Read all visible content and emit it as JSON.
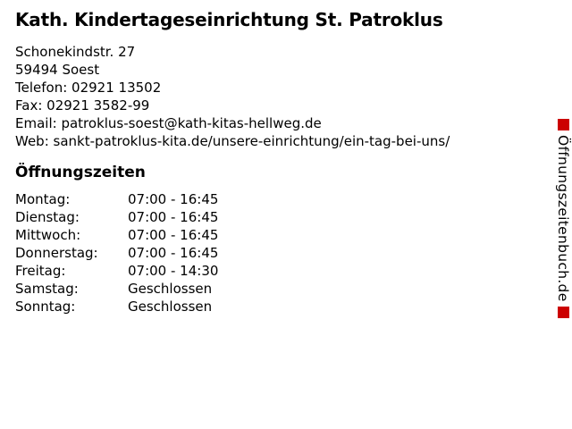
{
  "business": {
    "name": "Kath. Kindertageseinrichtung St. Patroklus"
  },
  "contact": {
    "lines": [
      {
        "label": "",
        "value": "Schonekindstr. 27"
      },
      {
        "label": "",
        "value": "59494 Soest"
      },
      {
        "label": "Telefon:",
        "value": "02921 13502"
      },
      {
        "label": "Fax:",
        "value": "02921 3582-99"
      },
      {
        "label": "Email:",
        "value": "patroklus-soest@kath-kitas-hellweg.de"
      },
      {
        "label": "Web:",
        "value": "sankt-patroklus-kita.de/unsere-einrichtung/ein-tag-bei-uns/"
      }
    ]
  },
  "hours": {
    "heading": "Öffnungszeiten",
    "rows": [
      {
        "day": "Montag:",
        "time": "07:00 - 16:45"
      },
      {
        "day": "Dienstag:",
        "time": "07:00 - 16:45"
      },
      {
        "day": "Mittwoch:",
        "time": "07:00 - 16:45"
      },
      {
        "day": "Donnerstag:",
        "time": "07:00 - 16:45"
      },
      {
        "day": "Freitag:",
        "time": "07:00 - 14:30"
      },
      {
        "day": "Samstag:",
        "time": "Geschlossen"
      },
      {
        "day": "Sonntag:",
        "time": "Geschlossen"
      }
    ]
  },
  "watermark": {
    "text": "Öffnungszeitenbuch.de",
    "square_color": "#cc0000"
  },
  "colors": {
    "background": "#ffffff",
    "text": "#000000",
    "accent_red": "#cc0000"
  }
}
